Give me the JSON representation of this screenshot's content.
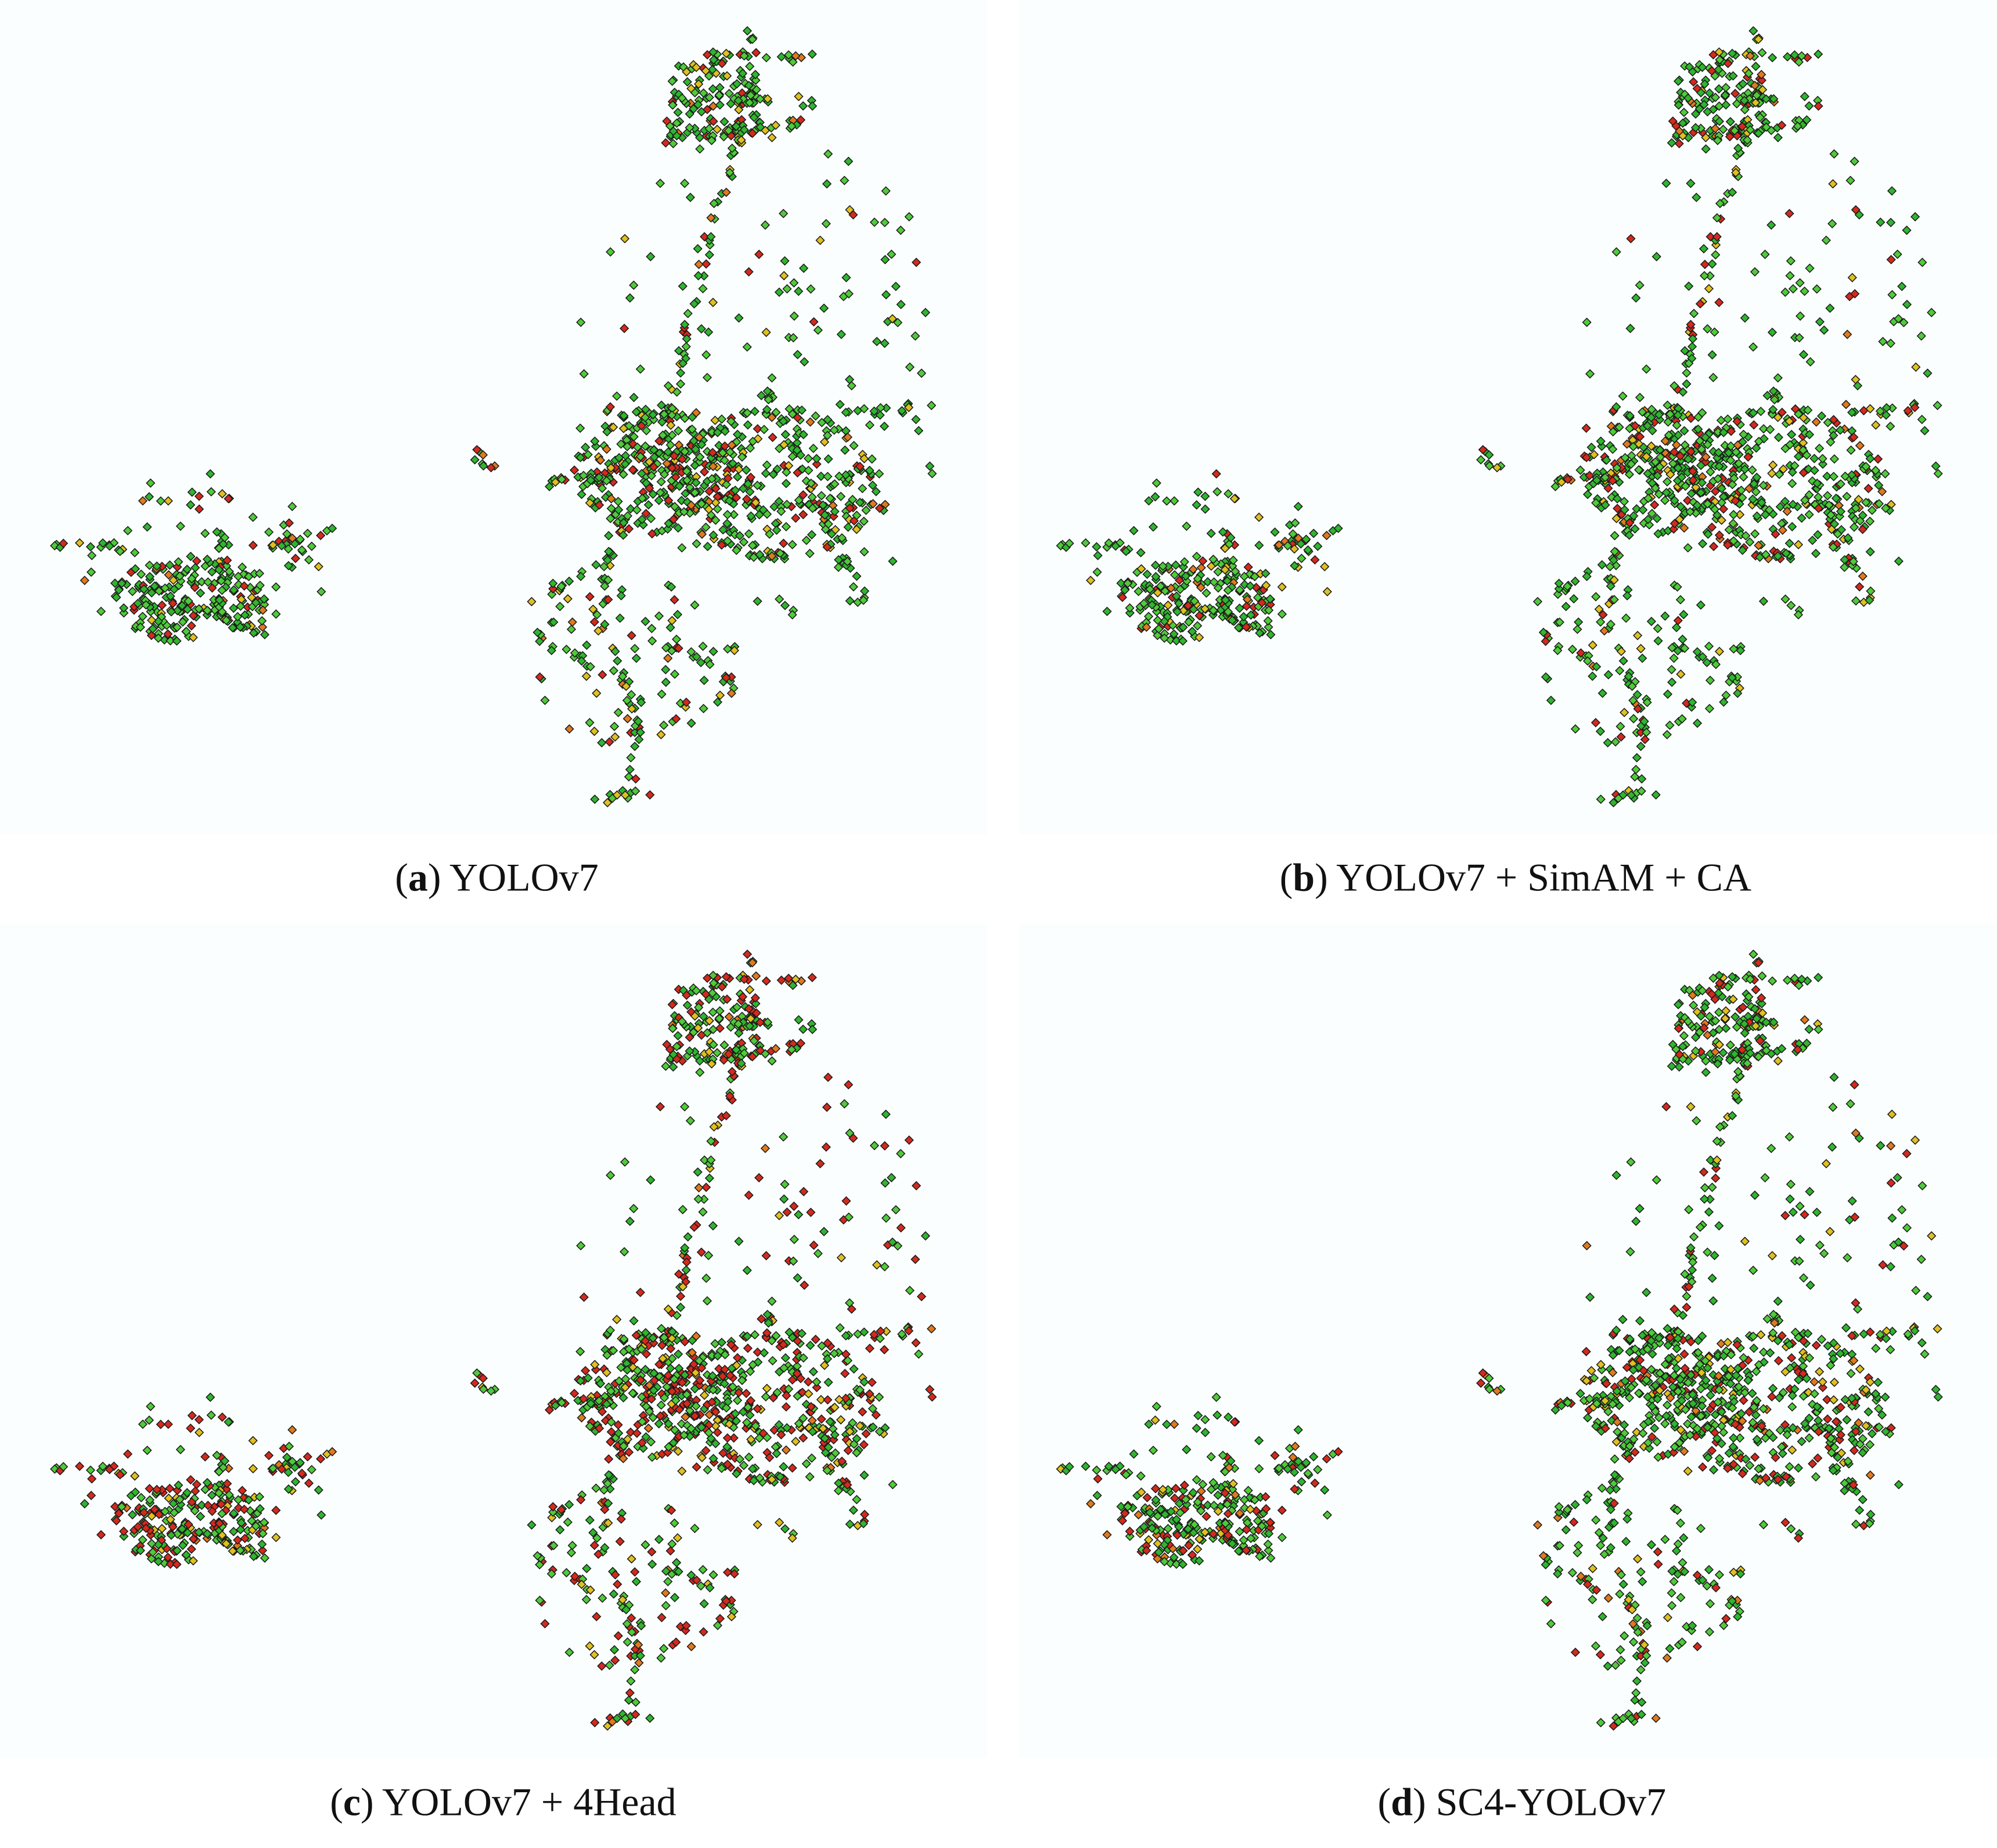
{
  "panels": [
    {
      "caption": [
        "(",
        "a",
        ") YOLOv7"
      ]
    },
    {
      "caption": [
        "(",
        "b",
        ") YOLOv7 + SimAM + CA"
      ]
    },
    {
      "caption": [
        "(",
        "c",
        ") YOLOv7 + 4Head"
      ]
    },
    {
      "caption": [
        "(",
        "d",
        ") SC4-YOLOv7"
      ]
    }
  ]
}
